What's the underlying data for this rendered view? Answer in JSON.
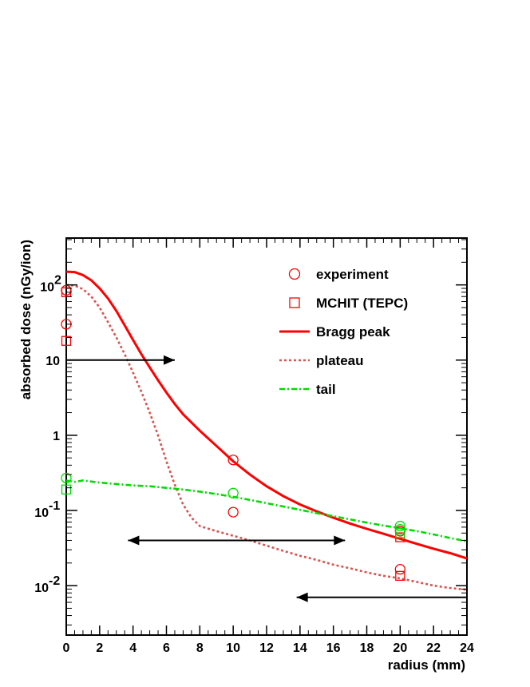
{
  "chart_data": {
    "type": "scatter",
    "title": "",
    "xlabel": "radius (mm)",
    "ylabel": "absorbed dose (nGy/ion)",
    "xlim": [
      0,
      24
    ],
    "ylim": [
      0.0022,
      420
    ],
    "yscale": "log",
    "x_ticks": [
      0,
      2,
      4,
      6,
      8,
      10,
      12,
      14,
      16,
      18,
      20,
      22,
      24
    ],
    "y_ticks": [
      {
        "value": 100,
        "base": "10",
        "exp": "2",
        "text": ""
      },
      {
        "value": 10,
        "base": "",
        "exp": "",
        "text": "10"
      },
      {
        "value": 1,
        "base": "",
        "exp": "",
        "text": "1"
      },
      {
        "value": 0.1,
        "base": "10",
        "exp": "-1",
        "text": ""
      },
      {
        "value": 0.01,
        "base": "10",
        "exp": "-2",
        "text": ""
      }
    ],
    "series": [
      {
        "name": "Bragg peak",
        "kind": "line",
        "style": "solid",
        "color": "#ff0000",
        "x": [
          0,
          0.5,
          1,
          1.5,
          2,
          2.5,
          3,
          3.5,
          4,
          4.5,
          5,
          5.5,
          6,
          6.5,
          7,
          8,
          9,
          10,
          11,
          12,
          13,
          14,
          15,
          16,
          17,
          18,
          19,
          20,
          21,
          22,
          23,
          24
        ],
        "y": [
          150,
          148,
          135,
          115,
          90,
          66,
          45,
          29,
          18.5,
          12,
          8,
          5.4,
          3.7,
          2.6,
          1.9,
          1.15,
          0.72,
          0.45,
          0.3,
          0.21,
          0.155,
          0.12,
          0.097,
          0.08,
          0.067,
          0.057,
          0.049,
          0.042,
          0.036,
          0.031,
          0.027,
          0.023
        ]
      },
      {
        "name": "plateau",
        "kind": "line",
        "style": "dotted",
        "color": "#d9534f",
        "x": [
          0,
          0.5,
          1,
          1.5,
          2,
          2.5,
          3,
          3.5,
          4,
          4.5,
          5,
          5.5,
          6,
          6.5,
          7,
          7.5,
          8,
          9,
          10,
          11,
          12,
          13,
          14,
          15,
          16,
          17,
          18,
          19,
          20,
          21,
          22,
          23,
          24
        ],
        "y": [
          100,
          98,
          88,
          70,
          50,
          32,
          20,
          12,
          6.8,
          3.8,
          2.0,
          1.0,
          0.45,
          0.22,
          0.12,
          0.08,
          0.062,
          0.053,
          0.046,
          0.04,
          0.034,
          0.029,
          0.025,
          0.022,
          0.019,
          0.017,
          0.015,
          0.0135,
          0.0125,
          0.0112,
          0.01,
          0.0093,
          0.0088
        ]
      },
      {
        "name": "tail",
        "kind": "line",
        "style": "dashdot",
        "color": "#00dd00",
        "x": [
          0,
          0.5,
          1,
          2,
          3,
          4,
          5,
          6,
          7,
          8,
          9,
          10,
          11,
          12,
          13,
          14,
          15,
          16,
          17,
          18,
          19,
          20,
          21,
          22,
          23,
          24
        ],
        "y": [
          0.25,
          0.24,
          0.25,
          0.235,
          0.225,
          0.215,
          0.21,
          0.2,
          0.19,
          0.178,
          0.165,
          0.152,
          0.138,
          0.125,
          0.113,
          0.102,
          0.092,
          0.084,
          0.076,
          0.069,
          0.063,
          0.058,
          0.053,
          0.048,
          0.043,
          0.039
        ]
      },
      {
        "name": "experiment",
        "kind": "points",
        "marker": "circle",
        "color": "#ff0000",
        "x": [
          0,
          0,
          10,
          10,
          20,
          20
        ],
        "y": [
          85,
          30,
          0.47,
          0.095,
          0.053,
          0.0165
        ]
      },
      {
        "name": "MCHIT (TEPC)",
        "kind": "points",
        "marker": "square",
        "color": "#ff0000",
        "x": [
          0,
          0,
          20,
          20
        ],
        "y": [
          80,
          18,
          0.044,
          0.0135
        ]
      },
      {
        "name": "experiment (tail)",
        "kind": "points",
        "marker": "circle",
        "color": "#00dd00",
        "x": [
          0,
          10,
          20,
          20
        ],
        "y": [
          0.27,
          0.17,
          0.062,
          0.056
        ]
      },
      {
        "name": "MCHIT (TEPC) (tail)",
        "kind": "points",
        "marker": "square",
        "color": "#00dd00",
        "x": [
          0,
          20
        ],
        "y": [
          0.19,
          0.05
        ]
      }
    ],
    "legend": [
      {
        "label": "experiment",
        "symbol": "circle",
        "color": "#ff0000"
      },
      {
        "label": "MCHIT (TEPC)",
        "symbol": "square",
        "color": "#ff0000"
      },
      {
        "label": "Bragg peak",
        "symbol": "solid",
        "color": "#ff0000"
      },
      {
        "label": "plateau",
        "symbol": "dotted",
        "color": "#d9534f"
      },
      {
        "label": "tail",
        "symbol": "dashdot",
        "color": "#00dd00"
      }
    ],
    "legend_position": "top-right",
    "annotations": [
      {
        "kind": "arrow-right",
        "x_from": 0,
        "x_to": 6.5,
        "y": 10,
        "color": "#000000"
      },
      {
        "kind": "arrow-both",
        "x_from": 3.7,
        "x_to": 16.7,
        "y": 0.04,
        "color": "#000000"
      },
      {
        "kind": "arrow-left",
        "x_from": 24,
        "x_to": 13.8,
        "y": 0.007,
        "color": "#000000"
      }
    ]
  }
}
